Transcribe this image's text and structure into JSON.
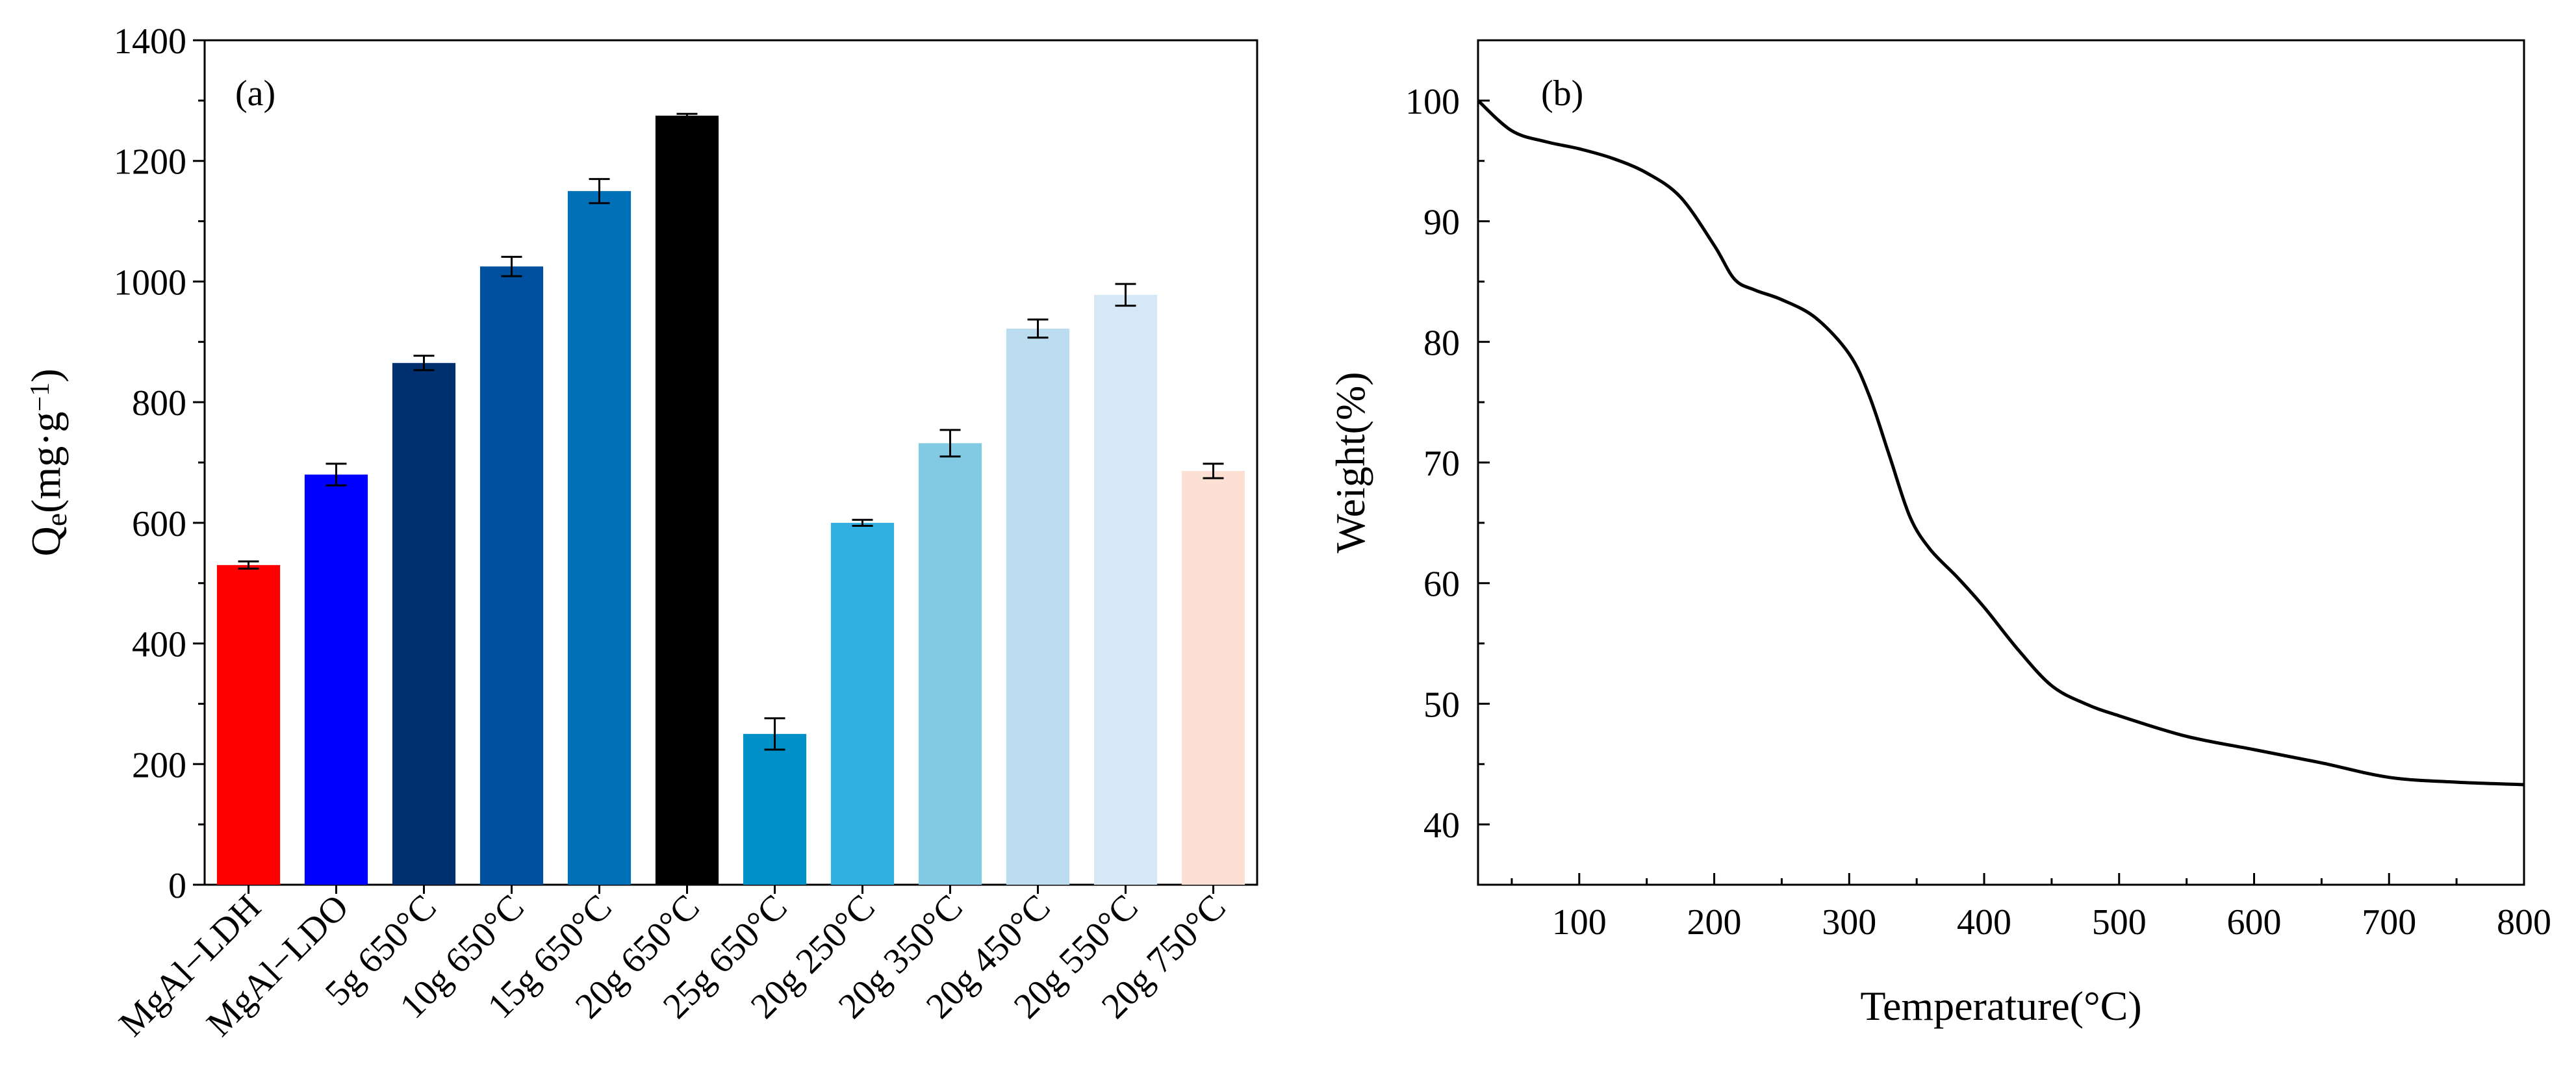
{
  "chart_data": [
    {
      "type": "bar",
      "panel_label": "(a)",
      "title": "",
      "xlabel": "",
      "ylabel": "Q",
      "ylabel_sub": "e",
      "ylabel_unit": "(mg·g",
      "ylabel_sup": "−1",
      "ylabel_close": ")",
      "ylim": [
        0,
        1400
      ],
      "yticks": [
        0,
        200,
        400,
        600,
        800,
        1000,
        1200,
        1400
      ],
      "categories": [
        "MgAl−LDH",
        "MgAl−LDO",
        "5g 650°C",
        "10g 650°C",
        "15g 650°C",
        "20g 650°C",
        "25g 650°C",
        "20g 250°C",
        "20g 350°C",
        "20g 450°C",
        "20g 550°C",
        "20g 750°C"
      ],
      "values": [
        530,
        680,
        865,
        1025,
        1150,
        1275,
        250,
        600,
        732,
        922,
        978,
        686
      ],
      "errors": [
        6,
        18,
        12,
        16,
        20,
        3,
        26,
        5,
        22,
        15,
        18,
        12
      ],
      "colors": [
        "#ff0000",
        "#0000ff",
        "#003070",
        "#0050a0",
        "#0070b8",
        "#000000",
        "#0090c8",
        "#30b0e0",
        "#82cae4",
        "#bcdcf0",
        "#d6e8f6",
        "#fde0d4"
      ],
      "grid": false
    },
    {
      "type": "line",
      "panel_label": "(b)",
      "title": "",
      "xlabel": "Temperature(°C)",
      "ylabel": "Weight(%)",
      "xlim": [
        25,
        800
      ],
      "ylim": [
        35,
        105
      ],
      "xticks": [
        100,
        200,
        300,
        400,
        500,
        600,
        700,
        800
      ],
      "yticks": [
        40,
        50,
        60,
        70,
        80,
        90,
        100
      ],
      "x": [
        25,
        50,
        75,
        100,
        125,
        150,
        175,
        200,
        215,
        230,
        250,
        275,
        300,
        315,
        330,
        345,
        360,
        380,
        400,
        425,
        450,
        475,
        500,
        550,
        600,
        650,
        700,
        750,
        800
      ],
      "y": [
        100.0,
        97.5,
        96.6,
        96.0,
        95.2,
        94.0,
        92.0,
        88.0,
        85.2,
        84.3,
        83.5,
        82.0,
        79.0,
        75.5,
        70.5,
        65.5,
        62.8,
        60.5,
        58.0,
        54.5,
        51.5,
        50.0,
        49.0,
        47.3,
        46.2,
        45.1,
        43.9,
        43.5,
        43.3
      ],
      "grid": false
    }
  ]
}
